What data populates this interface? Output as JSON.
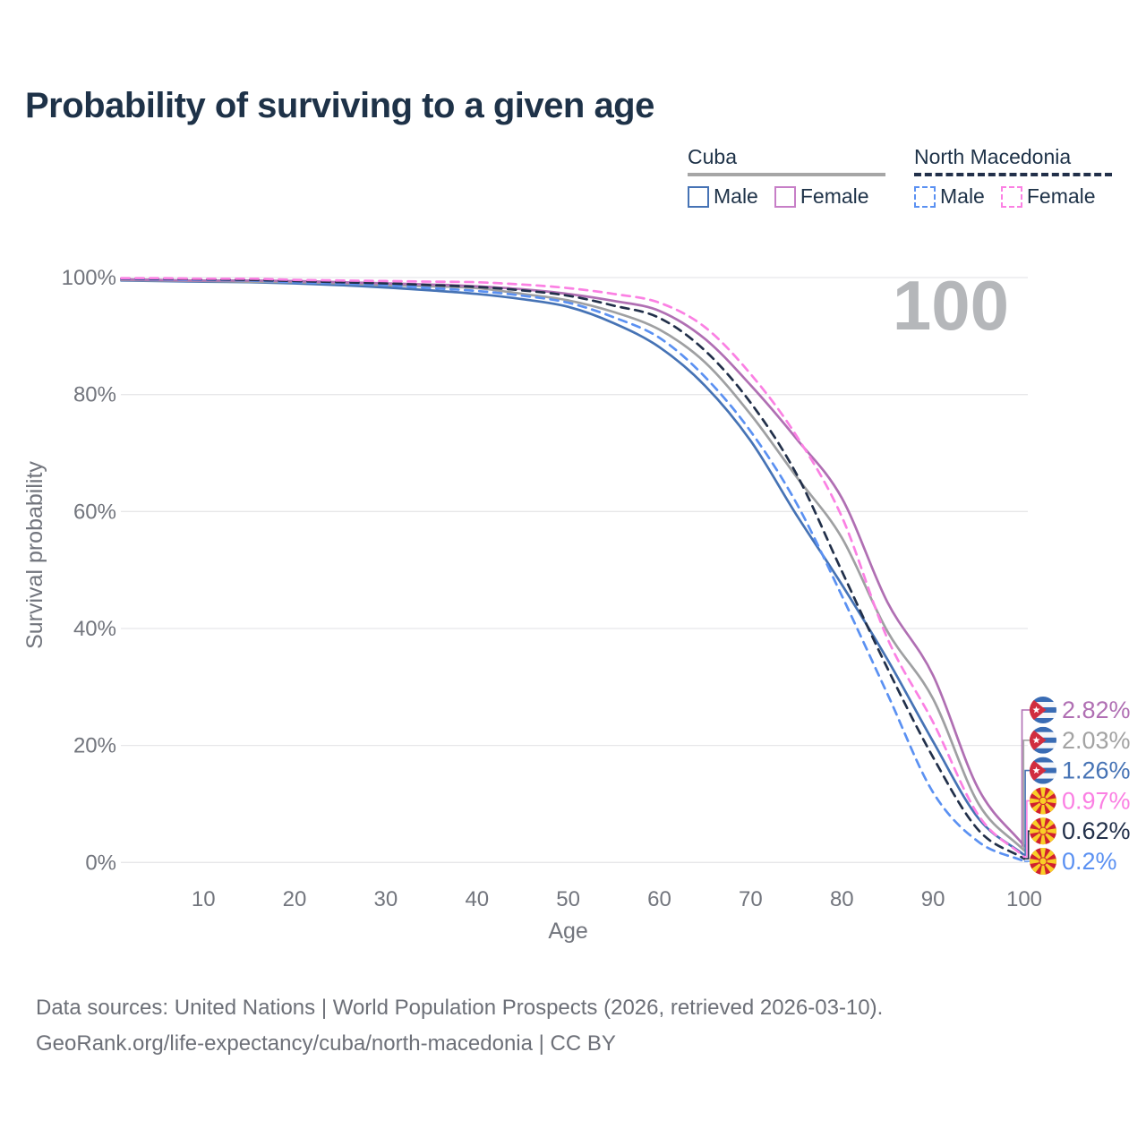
{
  "title": "Probability of surviving to a given age",
  "watermark": "100",
  "legend": {
    "groups": [
      {
        "label": "Cuba",
        "underline": "solid",
        "underline_color": "#a6a6a6",
        "items": [
          {
            "label": "Male",
            "color": "#4673b5",
            "dashed": false
          },
          {
            "label": "Female",
            "color": "#c77fc7",
            "dashed": false
          }
        ]
      },
      {
        "label": "North Macedonia",
        "underline": "dashed",
        "underline_color": "#22304a",
        "items": [
          {
            "label": "Male",
            "color": "#5b91f2",
            "dashed": true
          },
          {
            "label": "Female",
            "color": "#fb80e3",
            "dashed": true
          }
        ]
      }
    ]
  },
  "chart_data": {
    "type": "line",
    "title": "Probability of surviving to a given age",
    "xlabel": "Age",
    "ylabel": "Survival probability",
    "xlim": [
      0,
      100
    ],
    "ylim": [
      0,
      100
    ],
    "grid": "horizontal",
    "x_ticks": [
      10,
      20,
      30,
      40,
      50,
      60,
      70,
      80,
      90,
      100
    ],
    "y_ticks": [
      0,
      20,
      40,
      60,
      80,
      100
    ],
    "y_tick_suffix": "%",
    "legend_position": "top-right",
    "x": [
      1,
      5,
      10,
      15,
      20,
      25,
      30,
      35,
      40,
      45,
      50,
      55,
      60,
      65,
      70,
      75,
      80,
      85,
      90,
      95,
      100
    ],
    "series": [
      {
        "name": "Cuba Male",
        "country": "Cuba",
        "sex": "Male",
        "color": "#4673b5",
        "dashed": false,
        "values": [
          99.5,
          99.4,
          99.3,
          99.2,
          99.0,
          98.7,
          98.3,
          97.8,
          97.2,
          96.3,
          95.0,
          92.2,
          88.1,
          81.5,
          72.1,
          59.5,
          47.5,
          34.7,
          20.7,
          7.5,
          1.26
        ]
      },
      {
        "name": "Cuba (both sexes)",
        "country": "Cuba",
        "sex": "Both",
        "color": "#9fa0a2",
        "dashed": false,
        "values": [
          99.6,
          99.5,
          99.4,
          99.3,
          99.2,
          99.0,
          98.7,
          98.5,
          98.2,
          97.2,
          96.1,
          94.1,
          91.1,
          85.5,
          76.6,
          66.0,
          55.5,
          39.5,
          28.0,
          10.0,
          2.03
        ]
      },
      {
        "name": "Cuba Female",
        "country": "Cuba",
        "sex": "Female",
        "color": "#b06fb3",
        "dashed": false,
        "values": [
          99.7,
          99.6,
          99.5,
          99.5,
          99.4,
          99.2,
          99.0,
          98.8,
          98.5,
          98.0,
          97.2,
          96.0,
          94.3,
          89.5,
          81.6,
          72.5,
          62.3,
          44.5,
          32.0,
          12.5,
          2.82
        ]
      },
      {
        "name": "North Macedonia Male",
        "country": "North Macedonia",
        "sex": "Male",
        "color": "#5b91f2",
        "dashed": true,
        "values": [
          99.8,
          99.7,
          99.6,
          99.5,
          99.2,
          99.0,
          98.7,
          98.2,
          97.7,
          96.9,
          95.7,
          93.2,
          89.7,
          83.0,
          73.7,
          61.5,
          45.6,
          28.8,
          12.0,
          3.5,
          0.2
        ]
      },
      {
        "name": "North Macedonia (both sexes)",
        "country": "North Macedonia",
        "sex": "Both",
        "color": "#22304a",
        "dashed": true,
        "values": [
          99.85,
          99.8,
          99.7,
          99.6,
          99.4,
          99.2,
          99.0,
          98.7,
          98.4,
          97.8,
          96.9,
          95.2,
          93.1,
          87.5,
          78.6,
          66.5,
          49.8,
          33.2,
          18.0,
          5.5,
          0.62
        ]
      },
      {
        "name": "North Macedonia Female",
        "country": "North Macedonia",
        "sex": "Female",
        "color": "#fb80e3",
        "dashed": true,
        "values": [
          99.9,
          99.9,
          99.8,
          99.8,
          99.6,
          99.5,
          99.4,
          99.3,
          99.2,
          98.8,
          98.2,
          97.2,
          95.7,
          91.5,
          83.5,
          73.0,
          59.1,
          38.3,
          24.0,
          8.0,
          0.97
        ]
      }
    ],
    "end_labels": [
      {
        "text": "2.82%",
        "value": 2.82,
        "series": "Cuba Female",
        "flag": "cuba-flag-icon",
        "color": "#b06fb3"
      },
      {
        "text": "2.03%",
        "value": 2.03,
        "series": "Cuba (both sexes)",
        "flag": "cuba-flag-icon",
        "color": "#a3a3a3"
      },
      {
        "text": "1.26%",
        "value": 1.26,
        "series": "Cuba Male",
        "flag": "cuba-flag-icon",
        "color": "#4673b5"
      },
      {
        "text": "0.97%",
        "value": 0.97,
        "series": "North Macedonia Female",
        "flag": "north-macedonia-flag-icon",
        "color": "#fb80e3"
      },
      {
        "text": "0.62%",
        "value": 0.62,
        "series": "North Macedonia (both sexes)",
        "flag": "north-macedonia-flag-icon",
        "color": "#22304a"
      },
      {
        "text": "0.2%",
        "value": 0.2,
        "series": "North Macedonia Male",
        "flag": "north-macedonia-flag-icon",
        "color": "#5b91f2"
      }
    ],
    "watermark": "100"
  },
  "footer": {
    "line1": "Data sources: United Nations | World Population Prospects (2026, retrieved 2026-03-10).",
    "line2": "GeoRank.org/life-expectancy/cuba/north-macedonia | CC BY"
  }
}
